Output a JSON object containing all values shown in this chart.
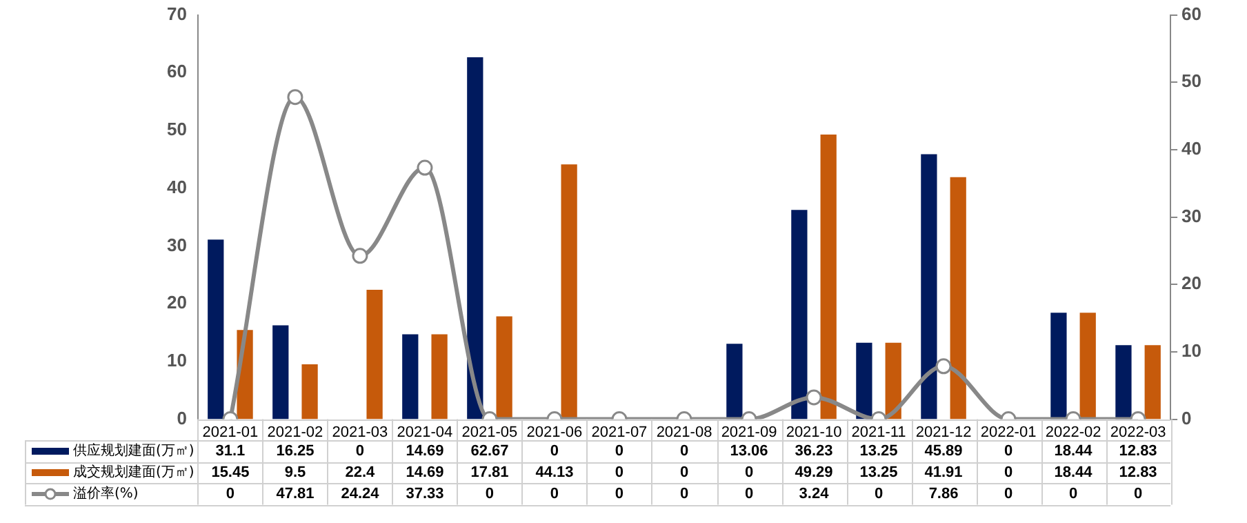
{
  "chart_data": {
    "type": "bar",
    "categories": [
      "2021-01",
      "2021-02",
      "2021-03",
      "2021-04",
      "2021-05",
      "2021-06",
      "2021-07",
      "2021-08",
      "2021-09",
      "2021-10",
      "2021-11",
      "2021-12",
      "2022-01",
      "2022-02",
      "2022-03"
    ],
    "series": [
      {
        "name": "供应规划建面(万㎡)",
        "color": "#001a5e",
        "values": [
          31.1,
          16.25,
          0,
          14.69,
          62.67,
          0,
          0,
          0,
          13.06,
          36.23,
          13.25,
          45.89,
          0,
          18.44,
          12.83
        ]
      },
      {
        "name": "成交规划建面(万㎡)",
        "color": "#c65a0b",
        "values": [
          15.45,
          9.5,
          22.4,
          14.69,
          17.81,
          44.13,
          0,
          0,
          0,
          49.29,
          13.25,
          41.91,
          0,
          18.44,
          12.83
        ]
      },
      {
        "name": "溢价率(%)",
        "type": "line",
        "axis": "y2",
        "color": "#888888",
        "marker": "circle",
        "values": [
          0,
          47.81,
          24.24,
          37.33,
          0,
          0,
          0,
          0,
          0,
          3.24,
          0,
          7.86,
          0,
          0,
          0
        ]
      }
    ],
    "ylim": [
      0,
      70
    ],
    "yticks": [
      0,
      10,
      20,
      30,
      40,
      50,
      60,
      70
    ],
    "y2lim": [
      0,
      60
    ],
    "y2ticks": [
      0,
      10,
      20,
      30,
      40,
      50,
      60
    ],
    "grid": false,
    "legend": "bottom left",
    "data_labels": true
  }
}
